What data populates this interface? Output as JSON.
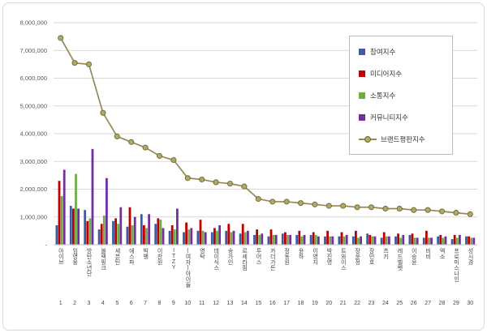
{
  "chart_data": {
    "type": "bar+line",
    "title": "",
    "categories": [
      "아이브",
      "임영웅",
      "방탄소년단",
      "블랙핑크",
      "세븐틴",
      "에스파",
      "빅뱅",
      "이찬원",
      "ITZY",
      "(여자)아이들",
      "영탁",
      "데이식스",
      "송가인",
      "르세라핌",
      "투어스",
      "카더가든",
      "정동원",
      "윤하",
      "이영지",
      "박진영",
      "트와이스",
      "장윤정",
      "장민호",
      "츠키",
      "레드벨벳",
      "이승윤",
      "비비",
      "엑소",
      "프로미스나인",
      "성시경"
    ],
    "ranks": [
      "1",
      "2",
      "3",
      "4",
      "5",
      "6",
      "7",
      "8",
      "9",
      "10",
      "11",
      "12",
      "13",
      "14",
      "15",
      "16",
      "17",
      "18",
      "19",
      "20",
      "21",
      "22",
      "23",
      "24",
      "25",
      "26",
      "27",
      "28",
      "29",
      "30"
    ],
    "bar_series": [
      {
        "name": "참여지수",
        "color": "#3B5BA5",
        "values": [
          700000,
          1400000,
          1250000,
          550000,
          850000,
          650000,
          1100000,
          750000,
          500000,
          450000,
          500000,
          450000,
          500000,
          400000,
          350000,
          300000,
          400000,
          350000,
          350000,
          300000,
          300000,
          300000,
          400000,
          250000,
          300000,
          350000,
          250000,
          300000,
          200000,
          300000
        ]
      },
      {
        "name": "미디어지수",
        "color": "#C00000",
        "values": [
          2300000,
          1300000,
          850000,
          750000,
          950000,
          1350000,
          700000,
          950000,
          700000,
          800000,
          900000,
          600000,
          750000,
          750000,
          550000,
          550000,
          450000,
          500000,
          450000,
          500000,
          450000,
          500000,
          350000,
          450000,
          400000,
          400000,
          500000,
          350000,
          350000,
          300000
        ]
      },
      {
        "name": "소통지수",
        "color": "#70AD47",
        "values": [
          1750000,
          2550000,
          950000,
          1050000,
          750000,
          700000,
          600000,
          900000,
          550000,
          550000,
          500000,
          500000,
          450000,
          450000,
          350000,
          350000,
          350000,
          300000,
          350000,
          300000,
          300000,
          250000,
          300000,
          300000,
          250000,
          250000,
          250000,
          250000,
          250000,
          250000
        ]
      },
      {
        "name": "커뮤니티지수",
        "color": "#7030A0",
        "values": [
          2700000,
          1300000,
          3450000,
          2400000,
          1350000,
          1000000,
          1100000,
          600000,
          1300000,
          600000,
          450000,
          700000,
          500000,
          500000,
          400000,
          350000,
          350000,
          350000,
          300000,
          300000,
          350000,
          300000,
          300000,
          300000,
          350000,
          250000,
          250000,
          300000,
          350000,
          250000
        ]
      }
    ],
    "line_series": {
      "name": "브랜드평판지수",
      "color": "#948A54",
      "marker_fill": "#B1A863",
      "marker_stroke": "#6E6839",
      "values": [
        7450000,
        6550000,
        6500000,
        4750000,
        3900000,
        3700000,
        3500000,
        3200000,
        3050000,
        2400000,
        2350000,
        2250000,
        2200000,
        2100000,
        1650000,
        1550000,
        1550000,
        1500000,
        1450000,
        1400000,
        1400000,
        1350000,
        1350000,
        1300000,
        1300000,
        1250000,
        1250000,
        1200000,
        1150000,
        1100000
      ]
    },
    "y_axis": {
      "max": 8000000,
      "tick_interval": 1000000,
      "ticks": [
        "8,000,000",
        "7,000,000",
        "6,000,000",
        "5,000,000",
        "4,000,000",
        "3,000,000",
        "2,000,000",
        "1,000,000",
        "-"
      ]
    },
    "grid": "horizontal",
    "legend_position": "upper-right"
  },
  "colors": {
    "gridline": "#D9D9D9",
    "axis": "#BFBFBF",
    "tick_text": "#595959",
    "label_text": "#454545"
  }
}
